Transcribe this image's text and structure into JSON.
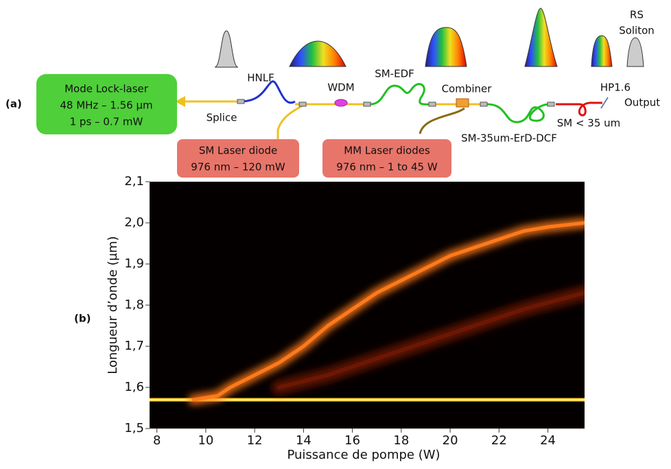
{
  "diagram": {
    "panel_a": "(a)",
    "laser": [
      "Mode Lock-laser",
      "48 MHz – 1.56 µm",
      "1 ps – 0.7 mW"
    ],
    "splice": "Splice",
    "hnlf": "HNLF",
    "wdm": "WDM",
    "edf": "SM-EDF",
    "combiner": "Combiner",
    "hp": "HP1.6",
    "output": "Output",
    "sm_diode": [
      "SM Laser diode",
      "976 nm – 120 mW"
    ],
    "mm_diode": [
      "MM Laser diodes",
      "976 nm – 1 to 45 W"
    ],
    "dcf": "SM-35um-ErD-DCF",
    "sm35": "SM < 35 um",
    "rs": [
      "RS",
      "Soliton"
    ],
    "panel_b": "(b)"
  },
  "chart_data": {
    "type": "line",
    "x_label": "Puissance de pompe (W)",
    "y_label": "Longueur d’onde (µm)",
    "xlim": [
      7.7,
      25.5
    ],
    "ylim": [
      1.5,
      2.1
    ],
    "xticks": [
      8,
      10,
      12,
      14,
      16,
      18,
      20,
      22,
      24
    ],
    "yticks": [
      {
        "value": 1.5,
        "label": "1,5"
      },
      {
        "value": 1.6,
        "label": "1,6"
      },
      {
        "value": 1.7,
        "label": "1,7"
      },
      {
        "value": 1.8,
        "label": "1,8"
      },
      {
        "value": 1.9,
        "label": "1,9"
      },
      {
        "value": 2.0,
        "label": "2,0"
      },
      {
        "value": 2.1,
        "label": "2,1"
      }
    ],
    "series": [
      {
        "color": "#ffcc33",
        "x": [
          7.7,
          10,
          13,
          16,
          19,
          22,
          25.5
        ],
        "values": [
          1.57,
          1.57,
          1.57,
          1.57,
          1.57,
          1.57,
          1.57
        ]
      },
      {
        "color": "#ff7a1a",
        "x": [
          9.5,
          10.5,
          11,
          12,
          13,
          14,
          15,
          16,
          17,
          18,
          19,
          20,
          21,
          22,
          23,
          24,
          25.5
        ],
        "values": [
          1.57,
          1.58,
          1.6,
          1.63,
          1.66,
          1.7,
          1.75,
          1.79,
          1.83,
          1.86,
          1.89,
          1.92,
          1.94,
          1.96,
          1.98,
          1.99,
          2.0
        ]
      },
      {
        "color": "#8a1a08",
        "x": [
          13,
          15,
          17,
          19,
          21,
          23,
          25.5
        ],
        "values": [
          1.6,
          1.63,
          1.67,
          1.71,
          1.75,
          1.79,
          1.83
        ]
      }
    ]
  }
}
